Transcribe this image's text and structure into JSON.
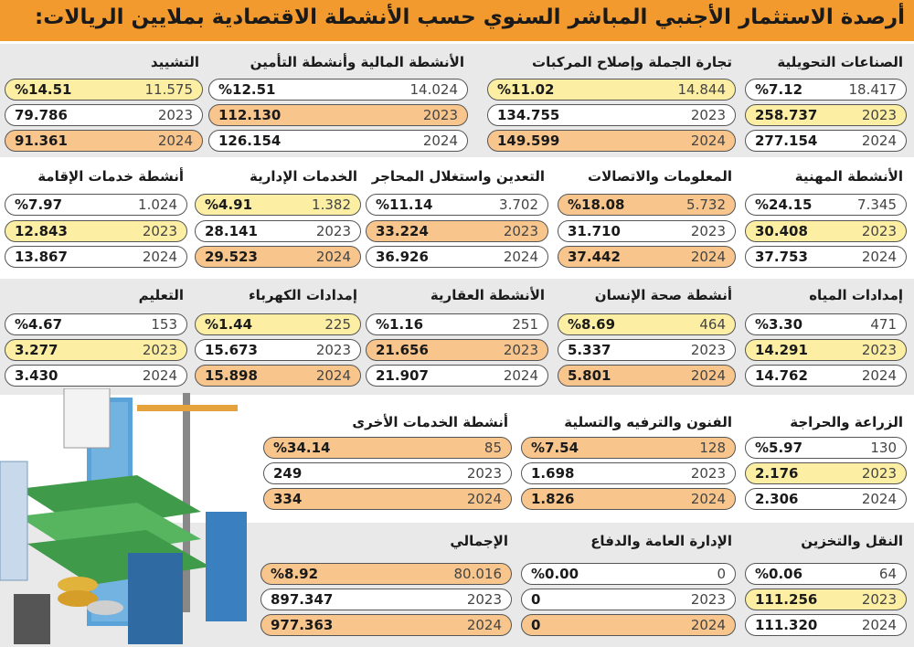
{
  "title": "أرصدة الاستثمار الأجنبي المباشر السنوي حسب الأنشطة الاقتصادية بملايين الريالات:",
  "years": [
    "2023",
    "2024"
  ],
  "sections": [
    {
      "cards": [
        {
          "name": "الصناعات التحويلية",
          "change": "18.417",
          "change_pct": "%7.12",
          "y2023": "258.737",
          "y2024": "277.154"
        },
        {
          "name": "تجارة الجملة  وإصلاح المركبات",
          "change": "14.844",
          "change_pct": "%11.02",
          "y2023": "134.755",
          "y2024": "149.599"
        },
        {
          "name": "الأنشطة المالية وأنشطة التأمين",
          "change": "14.024",
          "change_pct": "%12.51",
          "y2023": "112.130",
          "y2024": "126.154"
        },
        {
          "name": "التشييد",
          "change": "11.575",
          "change_pct": "%14.51",
          "y2023": "79.786",
          "y2024": "91.361"
        }
      ]
    },
    {
      "cards": [
        {
          "name": "الأنشطة المهنية",
          "change": "7.345",
          "change_pct": "%24.15",
          "y2023": "30.408",
          "y2024": "37.753"
        },
        {
          "name": "المعلومات والاتصالات",
          "change": "5.732",
          "change_pct": "%18.08",
          "y2023": "31.710",
          "y2024": "37.442"
        },
        {
          "name": "التعدين واستغلال المحاجر",
          "change": "3.702",
          "change_pct": "%11.14",
          "y2023": "33.224",
          "y2024": "36.926"
        },
        {
          "name": "الخدمات الإدارية",
          "change": "1.382",
          "change_pct": "%4.91",
          "y2023": "28.141",
          "y2024": "29.523"
        },
        {
          "name": "أنشطة خدمات الإقامة",
          "change": "1.024",
          "change_pct": "%7.97",
          "y2023": "12.843",
          "y2024": "13.867"
        }
      ]
    },
    {
      "cards": [
        {
          "name": "إمدادات المياه",
          "change": "471",
          "change_pct": "%3.30",
          "y2023": "14.291",
          "y2024": "14.762"
        },
        {
          "name": "أنشطة صحة الإنسان",
          "change": "464",
          "change_pct": "%8.69",
          "y2023": "5.337",
          "y2024": "5.801"
        },
        {
          "name": "الأنشطة العقارية",
          "change": "251",
          "change_pct": "%1.16",
          "y2023": "21.656",
          "y2024": "21.907"
        },
        {
          "name": "إمدادات الكهرباء",
          "change": "225",
          "change_pct": "%1.44",
          "y2023": "15.673",
          "y2024": "15.898"
        },
        {
          "name": "التعليم",
          "change": "153",
          "change_pct": "%4.67",
          "y2023": "3.277",
          "y2024": "3.430"
        }
      ]
    },
    {
      "cards": [
        {
          "name": "الزراعة والحراجة",
          "change": "130",
          "change_pct": "%5.97",
          "y2023": "2.176",
          "y2024": "2.306"
        },
        {
          "name": "الفنون والترفيه والتسلية",
          "change": "128",
          "change_pct": "%7.54",
          "y2023": "1.698",
          "y2024": "1.826"
        },
        {
          "name": "أنشطة الخدمات الأخرى",
          "change": "85",
          "change_pct": "%34.14",
          "y2023": "249",
          "y2024": "334"
        }
      ]
    },
    {
      "cards": [
        {
          "name": "النقل والتخزين",
          "change": "64",
          "change_pct": "%0.06",
          "y2023": "111.256",
          "y2024": "111.320"
        },
        {
          "name": "الإدارة العامة والدفاع",
          "change": "0",
          "change_pct": "%0.00",
          "y2023": "0",
          "y2024": "0"
        },
        {
          "name": "الإجمالي",
          "change": "80.016",
          "change_pct": "%8.92",
          "y2023": "897.347",
          "y2024": "977.363"
        }
      ]
    }
  ]
}
